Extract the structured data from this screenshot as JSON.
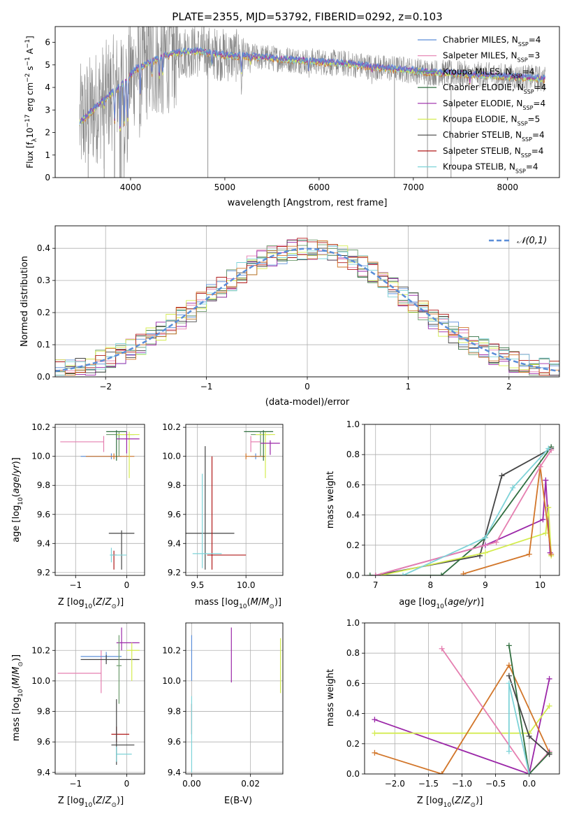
{
  "colors": {
    "chabrier_miles": "#5b8ed8",
    "salpeter_miles": "#e57fb0",
    "kroupa_miles": "#6c9b6c",
    "chabrier_elodie": "#2f6e3f",
    "salpeter_elodie": "#9b27a8",
    "kroupa_elodie": "#d4ec50",
    "chabrier_stelib": "#444444",
    "salpeter_stelib": "#b01818",
    "kroupa_stelib": "#7ed3d8",
    "orange": "#d2762a",
    "data_gray": "#888888",
    "gaussian": "#5b8ed8",
    "grid": "#b0b0b0"
  },
  "chart_data": [
    {
      "id": "spectrum",
      "type": "line",
      "title": "PLATE=2355, MJD=53792, FIBERID=0292, z=0.103",
      "xlabel": "wavelength [Angstrom, rest frame]",
      "ylabel": "Flux [f_λ10^-17 erg cm^-2 s^-1 A^-1]",
      "xlim": [
        3200,
        8550
      ],
      "ylim": [
        0,
        6.7
      ],
      "xticks": [
        "4000",
        "5000",
        "6000",
        "7000",
        "8000"
      ],
      "yticks": [
        "0",
        "1",
        "2",
        "3",
        "4",
        "5",
        "6"
      ],
      "grid": false,
      "legend_position": "upper-right",
      "series": [
        {
          "name": "Chabrier MILES, N_SSP=4",
          "legend_label": "Chabrier MILES, N",
          "sub": "SSP",
          "suffix": "=4",
          "color": "chabrier_miles"
        },
        {
          "name": "Salpeter MILES, N_SSP=3",
          "legend_label": "Salpeter MILES, N",
          "sub": "SSP",
          "suffix": "=3",
          "color": "salpeter_miles"
        },
        {
          "name": "Kroupa MILES, N_SSP=4",
          "legend_label": "Kroupa MILES, N",
          "sub": "SSP",
          "suffix": "=4",
          "color": "kroupa_miles"
        },
        {
          "name": "Chabrier ELODIE, N_SSP=4",
          "legend_label": "Chabrier ELODIE, N",
          "sub": "SSP",
          "suffix": "=4",
          "color": "chabrier_elodie"
        },
        {
          "name": "Salpeter ELODIE, N_SSP=4",
          "legend_label": "Salpeter ELODIE, N",
          "sub": "SSP",
          "suffix": "=4",
          "color": "salpeter_elodie"
        },
        {
          "name": "Kroupa ELODIE, N_SSP=5",
          "legend_label": "Kroupa ELODIE, N",
          "sub": "SSP",
          "suffix": "=5",
          "color": "kroupa_elodie"
        },
        {
          "name": "Chabrier STELIB, N_SSP=4",
          "legend_label": "Chabrier STELIB, N",
          "sub": "SSP",
          "suffix": "=4",
          "color": "chabrier_stelib"
        },
        {
          "name": "Salpeter STELIB, N_SSP=4",
          "legend_label": "Salpeter STELIB, N",
          "sub": "SSP",
          "suffix": "=4",
          "color": "salpeter_stelib"
        },
        {
          "name": "Kroupa STELIB, N_SSP=4",
          "legend_label": "Kroupa STELIB, N",
          "sub": "SSP",
          "suffix": "=4",
          "color": "kroupa_stelib"
        }
      ],
      "continuum": {
        "x": [
          3450,
          3550,
          3700,
          3850,
          3950,
          4050,
          4150,
          4300,
          4450,
          4600,
          4750,
          4900,
          5050,
          5200,
          5350,
          5500,
          5650,
          5800,
          5950,
          6100,
          6300,
          6500,
          6700,
          6900,
          7100,
          7300,
          7500,
          7700,
          7900,
          8100,
          8300,
          8400
        ],
        "y": [
          2.4,
          2.8,
          3.4,
          3.9,
          4.3,
          4.8,
          5.0,
          5.3,
          5.5,
          5.6,
          5.6,
          5.5,
          5.4,
          5.4,
          5.35,
          5.3,
          5.25,
          5.2,
          5.15,
          5.1,
          5.05,
          4.95,
          4.85,
          4.8,
          4.7,
          4.65,
          4.6,
          4.55,
          4.5,
          4.45,
          4.4,
          4.35
        ]
      }
    },
    {
      "id": "residuals",
      "type": "line",
      "xlabel": "(data-model)/error",
      "ylabel": "Normed distribution",
      "xlim": [
        -2.5,
        2.5
      ],
      "ylim": [
        0,
        0.47
      ],
      "xticks": [
        "−2",
        "−1",
        "0",
        "1",
        "2"
      ],
      "yticks": [
        "0.0",
        "0.1",
        "0.2",
        "0.3",
        "0.4"
      ],
      "grid": true,
      "legend_position": "upper-right",
      "legend": "𝒩(0,1)",
      "gaussian": {
        "mean": 0,
        "sigma": 1,
        "name": "N(0,1)"
      }
    },
    {
      "id": "age-vs-z",
      "type": "scatter",
      "xlabel": "Z [log10(Z/Z☉)]",
      "ylabel": "age [log10(age/yr)]",
      "xlim": [
        -1.4,
        0.35
      ],
      "ylim": [
        9.18,
        10.22
      ],
      "xticks": [
        "−1",
        "0"
      ],
      "yticks": [
        "9.2",
        "9.4",
        "9.6",
        "9.8",
        "10.0",
        "10.2"
      ],
      "grid": true,
      "errorbars": [
        {
          "color": "salpeter_miles",
          "x": -0.45,
          "y": 10.1,
          "xerr": [
            0.85,
            0
          ],
          "yerr": [
            0.07,
            0.04
          ]
        },
        {
          "color": "chabrier_miles",
          "x": -0.3,
          "y": 10.0,
          "xerr": [
            0.6,
            0.2
          ],
          "yerr": [
            0.02,
            0.02
          ]
        },
        {
          "color": "orange",
          "x": -0.25,
          "y": 10.0,
          "xerr": [
            0.55,
            0.4
          ],
          "yerr": [
            0.02,
            0.02
          ]
        },
        {
          "color": "kroupa_miles",
          "x": -0.15,
          "y": 10.15,
          "xerr": [
            0.25,
            0.3
          ],
          "yerr": [
            0.15,
            0.02
          ]
        },
        {
          "color": "kroupa_elodie",
          "x": 0.05,
          "y": 10.15,
          "xerr": [
            0.25,
            0.2
          ],
          "yerr": [
            0.3,
            0.02
          ]
        },
        {
          "color": "chabrier_elodie",
          "x": -0.2,
          "y": 10.17,
          "xerr": [
            0.2,
            0.2
          ],
          "yerr": [
            0.2,
            0.01
          ]
        },
        {
          "color": "salpeter_elodie",
          "x": 0.0,
          "y": 10.12,
          "xerr": [
            0.2,
            0.25
          ],
          "yerr": [
            0.1,
            0.05
          ]
        },
        {
          "color": "chabrier_stelib",
          "x": -0.1,
          "y": 9.47,
          "xerr": [
            0.25,
            0.25
          ],
          "yerr": [
            0.25,
            0.02
          ]
        },
        {
          "color": "salpeter_stelib",
          "x": -0.25,
          "y": 9.32,
          "xerr": [
            0.03,
            0.05
          ],
          "yerr": [
            0.1,
            0.03
          ]
        },
        {
          "color": "kroupa_stelib",
          "x": -0.3,
          "y": 9.32,
          "xerr": [
            0.03,
            0.3
          ],
          "yerr": [
            0.05,
            0.05
          ]
        }
      ]
    },
    {
      "id": "age-vs-mass",
      "type": "scatter",
      "xlabel": "mass [log10(M/M☉)]",
      "ylabel": "",
      "xlim": [
        9.38,
        10.38
      ],
      "ylim": [
        9.18,
        10.22
      ],
      "xticks": [
        "9.5",
        "10.0"
      ],
      "yticks": [
        "9.2",
        "9.4",
        "9.6",
        "9.8",
        "10.0",
        "10.2"
      ],
      "grid": true,
      "errorbars": [
        {
          "color": "salpeter_miles",
          "x": 10.05,
          "y": 10.1,
          "xerr": [
            0.0,
            0.1
          ],
          "yerr": [
            0.07,
            0.04
          ]
        },
        {
          "color": "chabrier_miles",
          "x": 10.1,
          "y": 10.0,
          "xerr": [
            0.05,
            0.1
          ],
          "yerr": [
            0.02,
            0.02
          ]
        },
        {
          "color": "orange",
          "x": 10.0,
          "y": 10.0,
          "xerr": [
            0.0,
            0.2
          ],
          "yerr": [
            0.02,
            0.02
          ]
        },
        {
          "color": "kroupa_miles",
          "x": 10.15,
          "y": 10.15,
          "xerr": [
            0.1,
            0.1
          ],
          "yerr": [
            0.15,
            0.02
          ]
        },
        {
          "color": "kroupa_elodie",
          "x": 10.2,
          "y": 10.15,
          "xerr": [
            0.1,
            0.1
          ],
          "yerr": [
            0.3,
            0.02
          ]
        },
        {
          "color": "chabrier_elodie",
          "x": 10.18,
          "y": 10.17,
          "xerr": [
            0.2,
            0.1
          ],
          "yerr": [
            0.2,
            0.01
          ]
        },
        {
          "color": "salpeter_elodie",
          "x": 10.25,
          "y": 10.09,
          "xerr": [
            0.1,
            0.1
          ],
          "yerr": [
            0.08,
            0.02
          ]
        },
        {
          "color": "chabrier_stelib",
          "x": 9.58,
          "y": 9.47,
          "xerr": [
            0.2,
            0.3
          ],
          "yerr": [
            0.25,
            0.6
          ]
        },
        {
          "color": "salpeter_stelib",
          "x": 9.65,
          "y": 9.32,
          "xerr": [
            0.05,
            0.35
          ],
          "yerr": [
            0.1,
            0.68
          ]
        },
        {
          "color": "kroupa_stelib",
          "x": 9.55,
          "y": 9.33,
          "xerr": [
            0.1,
            0.2
          ],
          "yerr": [
            0.1,
            0.55
          ]
        }
      ]
    },
    {
      "id": "massweight-vs-age",
      "type": "line",
      "xlabel": "age [log10(age/yr)]",
      "ylabel": "mass weight",
      "xlim": [
        6.8,
        10.35
      ],
      "ylim": [
        0,
        1.0
      ],
      "xticks": [
        "7",
        "8",
        "9",
        "10"
      ],
      "yticks": [
        "0.0",
        "0.2",
        "0.4",
        "0.6",
        "0.8",
        "1.0"
      ],
      "grid": true,
      "series": [
        {
          "color": "chabrier_stelib",
          "x": [
            7.0,
            8.9,
            9.3,
            10.2
          ],
          "y": [
            0.0,
            0.13,
            0.66,
            0.84
          ]
        },
        {
          "color": "chabrier_elodie",
          "x": [
            6.9,
            8.2,
            9.0,
            10.2
          ],
          "y": [
            0.0,
            0.0,
            0.25,
            0.85
          ]
        },
        {
          "color": "salpeter_elodie",
          "x": [
            7.0,
            9.0,
            10.05,
            10.1,
            10.18
          ],
          "y": [
            0.0,
            0.2,
            0.37,
            0.63,
            0.15
          ]
        },
        {
          "color": "kroupa_elodie",
          "x": [
            7.1,
            9.0,
            10.1,
            10.15,
            10.2
          ],
          "y": [
            0.0,
            0.15,
            0.28,
            0.45,
            0.13
          ]
        },
        {
          "color": "orange",
          "x": [
            8.6,
            9.8,
            10.0,
            10.2
          ],
          "y": [
            0.01,
            0.14,
            0.72,
            0.14
          ]
        },
        {
          "color": "salpeter_miles",
          "x": [
            7.0,
            9.2,
            10.0,
            10.2
          ],
          "y": [
            0.0,
            0.22,
            0.72,
            0.83
          ]
        },
        {
          "color": "kroupa_stelib",
          "x": [
            7.5,
            9.0,
            9.5,
            10.15
          ],
          "y": [
            0.0,
            0.25,
            0.58,
            0.84
          ]
        }
      ]
    },
    {
      "id": "mass-vs-z",
      "type": "scatter",
      "xlabel": "Z [log10(Z/Z☉)]",
      "ylabel": "mass [log10(M/M☉)]",
      "xlim": [
        -1.4,
        0.35
      ],
      "ylim": [
        9.39,
        10.38
      ],
      "xticks": [
        "−1",
        "0"
      ],
      "yticks": [
        "9.4",
        "9.6",
        "9.8",
        "10.0",
        "10.2"
      ],
      "grid": true,
      "errorbars": [
        {
          "color": "salpeter_miles",
          "x": -0.5,
          "y": 10.05,
          "xerr": [
            0.85,
            0
          ],
          "yerr": [
            0.13,
            0.15
          ]
        },
        {
          "color": "chabrier_miles",
          "x": -0.4,
          "y": 10.16,
          "xerr": [
            0.5,
            0.3
          ],
          "yerr": [
            0.03,
            0.03
          ]
        },
        {
          "color": "chabrier_stelib",
          "x": -0.4,
          "y": 10.14,
          "xerr": [
            0.5,
            0.65
          ],
          "yerr": [
            0.03,
            0.03
          ]
        },
        {
          "color": "salpeter_elodie",
          "x": -0.1,
          "y": 10.25,
          "xerr": [
            0.1,
            0.35
          ],
          "yerr": [
            0.05,
            0.1
          ]
        },
        {
          "color": "kroupa_elodie",
          "x": 0.1,
          "y": 10.2,
          "xerr": [
            0.1,
            0.15
          ],
          "yerr": [
            0.2,
            0.05
          ]
        },
        {
          "color": "kroupa_miles",
          "x": -0.15,
          "y": 10.1,
          "xerr": [
            0.05,
            0.05
          ],
          "yerr": [
            0.25,
            0.2
          ]
        },
        {
          "color": "salpeter_stelib",
          "x": -0.2,
          "y": 9.65,
          "xerr": [
            0.1,
            0.25
          ],
          "yerr": [
            0.05,
            0.05
          ]
        },
        {
          "color": "chabrier_stelib",
          "x": -0.2,
          "y": 9.58,
          "xerr": [
            0.1,
            0.35
          ],
          "yerr": [
            0.13,
            0.3
          ]
        },
        {
          "color": "kroupa_stelib",
          "x": -0.2,
          "y": 9.52,
          "xerr": [
            0.0,
            0.3
          ],
          "yerr": [
            0.05,
            0.05
          ]
        }
      ]
    },
    {
      "id": "mass-vs-ebv",
      "type": "scatter",
      "xlabel": "E(B-V)",
      "ylabel": "",
      "xlim": [
        -0.002,
        0.031
      ],
      "ylim": [
        9.39,
        10.38
      ],
      "xticks": [
        "0.00",
        "0.02"
      ],
      "yticks": [
        "9.4",
        "9.6",
        "9.8",
        "10.0",
        "10.2"
      ],
      "grid": true,
      "errorbars": [
        {
          "color": "salpeter_elodie",
          "x": 0.0135,
          "y": 10.17,
          "xerr": [
            0,
            0
          ],
          "yerr": [
            0.18,
            0.18
          ]
        },
        {
          "color": "kroupa_elodie",
          "x": 0.0302,
          "y": 10.1,
          "xerr": [
            0,
            0
          ],
          "yerr": [
            0.18,
            0.18
          ]
        },
        {
          "color": "chabrier_miles",
          "x": 0.0,
          "y": 10.15,
          "xerr": [
            0,
            0
          ],
          "yerr": [
            0.15,
            0.15
          ]
        },
        {
          "color": "salpeter_stelib",
          "x": 0.0,
          "y": 9.75,
          "xerr": [
            0,
            0
          ],
          "yerr": [
            0.1,
            0.1
          ]
        },
        {
          "color": "kroupa_stelib",
          "x": 0.0,
          "y": 9.6,
          "xerr": [
            0,
            0
          ],
          "yerr": [
            0.2,
            0.3
          ]
        }
      ]
    },
    {
      "id": "massweight-vs-z",
      "type": "line",
      "xlabel": "Z [log10(Z/Z☉)]",
      "ylabel": "mass weight",
      "xlim": [
        -2.45,
        0.45
      ],
      "ylim": [
        0,
        1.0
      ],
      "xticks": [
        "−2.0",
        "−1.5",
        "−1.0",
        "−0.5",
        "0.0"
      ],
      "yticks": [
        "0.0",
        "0.2",
        "0.4",
        "0.6",
        "0.8",
        "1.0"
      ],
      "grid": true,
      "series": [
        {
          "color": "salpeter_elodie",
          "x": [
            -2.3,
            0.0,
            0.3
          ],
          "y": [
            0.36,
            0.0,
            0.63
          ]
        },
        {
          "color": "kroupa_elodie",
          "x": [
            -2.3,
            0.0,
            0.3
          ],
          "y": [
            0.27,
            0.27,
            0.45
          ]
        },
        {
          "color": "orange",
          "x": [
            -2.3,
            -1.3,
            -0.3,
            0.3
          ],
          "y": [
            0.14,
            0.0,
            0.72,
            0.14
          ]
        },
        {
          "color": "salpeter_miles",
          "x": [
            -1.3,
            0.0,
            0.3
          ],
          "y": [
            0.83,
            0.0,
            0.15
          ]
        },
        {
          "color": "chabrier_elodie",
          "x": [
            -0.3,
            0.0,
            0.3
          ],
          "y": [
            0.85,
            0.0,
            0.14
          ]
        },
        {
          "color": "chabrier_stelib",
          "x": [
            -0.3,
            0.0,
            0.3
          ],
          "y": [
            0.65,
            0.25,
            0.13
          ]
        },
        {
          "color": "kroupa_stelib",
          "x": [
            -0.3,
            -0.3,
            0.0
          ],
          "y": [
            0.15,
            0.6,
            0.0
          ]
        }
      ]
    }
  ]
}
